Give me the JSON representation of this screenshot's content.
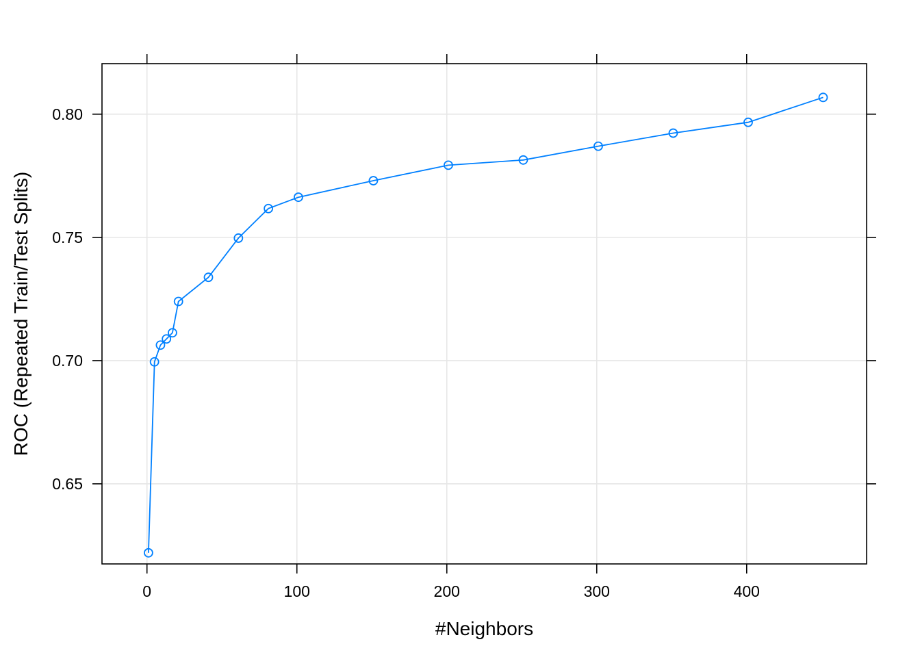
{
  "chart_data": {
    "type": "line",
    "xlabel": "#Neighbors",
    "ylabel": "ROC (Repeated Train/Test Splits)",
    "xlim": [
      -30,
      480
    ],
    "ylim": [
      0.6175,
      0.8205
    ],
    "x_ticks": [
      0,
      100,
      200,
      300,
      400
    ],
    "x_tick_labels": [
      "0",
      "100",
      "200",
      "300",
      "400"
    ],
    "y_ticks": [
      0.65,
      0.7,
      0.75,
      0.8
    ],
    "y_tick_labels": [
      "0.65",
      "0.70",
      "0.75",
      "0.80"
    ],
    "grid": true,
    "markers": "open-circle",
    "line_color": "#0080ff",
    "grid_color": "#e6e6e6",
    "series": [
      {
        "x": [
          1,
          5,
          9,
          13,
          17,
          21,
          41,
          61,
          81,
          101,
          151,
          201,
          251,
          301,
          351,
          401,
          451
        ],
        "values": [
          0.622,
          0.6995,
          0.7063,
          0.7088,
          0.7113,
          0.724,
          0.7338,
          0.7497,
          0.7617,
          0.7663,
          0.773,
          0.7793,
          0.7814,
          0.787,
          0.7923,
          0.7967,
          0.8068
        ]
      }
    ]
  }
}
